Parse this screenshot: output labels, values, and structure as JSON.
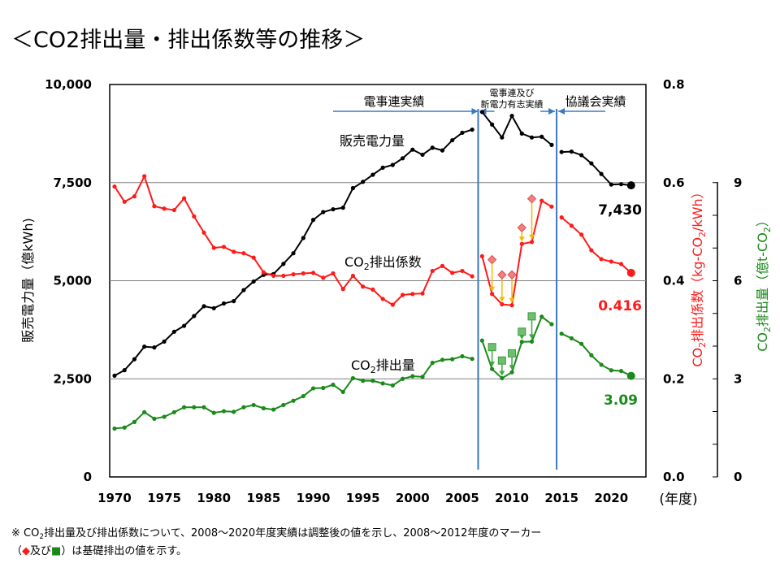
{
  "title": "＜CO2排出量・排出係数等の推移＞",
  "colors": {
    "sales": "#000000",
    "coef": "#ff1a1a",
    "emission": "#1a8a1a",
    "coef_base": "#f07f7f",
    "emission_base": "#6ec06e",
    "coef_arrow": "#f5b800",
    "emission_arrow": "#3fa83f",
    "divider": "#3a78c2",
    "grid": "#808080"
  },
  "axes": {
    "left_label": "販売電力量（億kWh)",
    "right1_label": "CO2排出係数（kg-CO2/kWh）",
    "right2_label": "CO2排出量（億t-CO2）",
    "x_unit": "(年度)"
  },
  "annotations": {
    "period1": "電事連実績",
    "period2_line1": "電事連及び",
    "period2_line2": "新電力有志実績",
    "period3": "協議会実績"
  },
  "footnote": {
    "line1": "※ CO2排出量及び排出係数について、2008～2020年度実績は調整後の値を示し、2008～2012年度のマーカー",
    "line2_a": "（",
    "line2_b": "及び",
    "line2_c": "）は基礎排出の値を示す。"
  },
  "chart_data": {
    "type": "line",
    "x_axis": {
      "label": "(年度)",
      "range": [
        1970,
        2023
      ],
      "ticks": [
        1970,
        1975,
        1980,
        1985,
        1990,
        1995,
        2000,
        2005,
        2010,
        2015,
        2020
      ]
    },
    "y_axes": [
      {
        "id": "left",
        "label": "販売電力量（億kWh)",
        "range": [
          0,
          10000
        ],
        "ticks": [
          "0",
          "2,500",
          "5,000",
          "7,500",
          "10,000"
        ],
        "tick_values": [
          0,
          2500,
          5000,
          7500,
          10000
        ]
      },
      {
        "id": "right1",
        "label": "CO2排出係数（kg-CO2/kWh）",
        "range": [
          0,
          0.8
        ],
        "ticks": [
          "0.0",
          "0.2",
          "0.4",
          "0.6",
          "0.8"
        ],
        "tick_values": [
          0,
          0.2,
          0.4,
          0.6,
          0.8
        ]
      },
      {
        "id": "right2",
        "label": "CO2排出量（億t-CO2）",
        "range": [
          0,
          12
        ],
        "ticks": [
          "0",
          "3",
          "6",
          "9"
        ],
        "tick_values": [
          0,
          3,
          6,
          9
        ]
      }
    ],
    "grid": true,
    "series": [
      {
        "name": "販売電力量",
        "axis": "left",
        "segments": [
          {
            "x": [
              1970,
              1971,
              1972,
              1973,
              1974,
              1975,
              1976,
              1977,
              1978,
              1979,
              1980,
              1981,
              1982,
              1983,
              1984,
              1985,
              1986,
              1987,
              1988,
              1989,
              1990,
              1991,
              1992,
              1993,
              1994,
              1995,
              1996,
              1997,
              1998,
              1999,
              2000,
              2001,
              2002,
              2003,
              2004,
              2005,
              2006
            ],
            "y": [
              2580,
              2720,
              3000,
              3320,
              3300,
              3450,
              3700,
              3850,
              4100,
              4350,
              4300,
              4420,
              4480,
              4760,
              4980,
              5150,
              5170,
              5430,
              5700,
              6090,
              6550,
              6750,
              6820,
              6860,
              7360,
              7520,
              7700,
              7880,
              7950,
              8120,
              8340,
              8210,
              8390,
              8320,
              8580,
              8770,
              8850
            ]
          },
          {
            "x": [
              2007,
              2008,
              2009,
              2010,
              2011,
              2012,
              2013,
              2014
            ],
            "y": [
              9300,
              8980,
              8650,
              9200,
              8750,
              8650,
              8670,
              8460
            ]
          },
          {
            "x": [
              2015,
              2016,
              2017,
              2018,
              2019,
              2020,
              2021,
              2022
            ],
            "y": [
              8280,
              8290,
              8200,
              7990,
              7720,
              7450,
              7460,
              7430
            ]
          }
        ],
        "end_value": "7,430"
      },
      {
        "name": "CO2排出係数",
        "axis": "right1",
        "segments": [
          {
            "x": [
              1970,
              1971,
              1972,
              1973,
              1974,
              1975,
              1976,
              1977,
              1978,
              1979,
              1980,
              1981,
              1982,
              1983,
              1984,
              1985,
              1986,
              1987,
              1988,
              1989,
              1990,
              1991,
              1992,
              1993,
              1994,
              1995,
              1996,
              1997,
              1998,
              1999,
              2000,
              2001,
              2002,
              2003,
              2004,
              2005,
              2006
            ],
            "y": [
              0.592,
              0.561,
              0.572,
              0.613,
              0.552,
              0.547,
              0.544,
              0.568,
              0.531,
              0.498,
              0.467,
              0.469,
              0.459,
              0.456,
              0.447,
              0.417,
              0.41,
              0.41,
              0.413,
              0.415,
              0.416,
              0.406,
              0.415,
              0.383,
              0.41,
              0.388,
              0.382,
              0.363,
              0.351,
              0.371,
              0.373,
              0.374,
              0.42,
              0.43,
              0.416,
              0.42,
              0.409
            ]
          },
          {
            "x": [
              2007,
              2008,
              2009,
              2010,
              2011,
              2012,
              2013,
              2014
            ],
            "y": [
              0.45,
              0.373,
              0.352,
              0.35,
              0.475,
              0.479,
              0.563,
              0.551
            ]
          },
          {
            "x": [
              2015,
              2016,
              2017,
              2018,
              2019,
              2020,
              2021,
              2022
            ],
            "y": [
              0.529,
              0.512,
              0.494,
              0.462,
              0.444,
              0.439,
              0.434,
              0.416
            ]
          }
        ],
        "base_markers": {
          "x": [
            2008,
            2009,
            2010,
            2011,
            2012
          ],
          "y": [
            0.443,
            0.412,
            0.412,
            0.508,
            0.567
          ]
        },
        "end_value": "0.416"
      },
      {
        "name": "CO2排出量",
        "axis": "right2",
        "segments": [
          {
            "x": [
              1970,
              1971,
              1972,
              1973,
              1974,
              1975,
              1976,
              1977,
              1978,
              1979,
              1980,
              1981,
              1982,
              1983,
              1984,
              1985,
              1986,
              1987,
              1988,
              1989,
              1990,
              1991,
              1992,
              1993,
              1994,
              1995,
              1996,
              1997,
              1998,
              1999,
              2000,
              2001,
              2002,
              2003,
              2004,
              2005,
              2006
            ],
            "y": [
              1.48,
              1.51,
              1.68,
              1.98,
              1.78,
              1.84,
              1.98,
              2.13,
              2.13,
              2.13,
              1.96,
              2.01,
              1.99,
              2.13,
              2.2,
              2.1,
              2.06,
              2.2,
              2.33,
              2.47,
              2.71,
              2.72,
              2.82,
              2.6,
              3.02,
              2.94,
              2.94,
              2.86,
              2.8,
              3.0,
              3.08,
              3.06,
              3.49,
              3.58,
              3.6,
              3.69,
              3.61
            ]
          },
          {
            "x": [
              2007,
              2008,
              2009,
              2010,
              2011,
              2012,
              2013,
              2014
            ],
            "y": [
              4.17,
              3.3,
              3.02,
              3.2,
              4.13,
              4.14,
              4.9,
              4.67
            ]
          },
          {
            "x": [
              2015,
              2016,
              2017,
              2018,
              2019,
              2020,
              2021,
              2022
            ],
            "y": [
              4.38,
              4.24,
              4.07,
              3.72,
              3.43,
              3.26,
              3.24,
              3.09
            ]
          }
        ],
        "base_markers": {
          "x": [
            2008,
            2009,
            2010,
            2011,
            2012
          ],
          "y": [
            3.97,
            3.56,
            3.78,
            4.44,
            4.91
          ]
        },
        "end_value": "3.09"
      }
    ],
    "period_dividers": [
      2006.6,
      2014.5
    ]
  }
}
